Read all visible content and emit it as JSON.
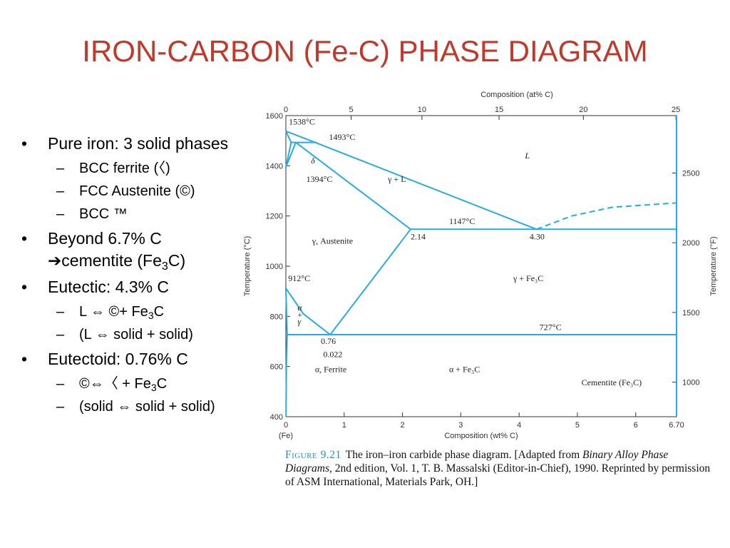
{
  "slide": {
    "title": "IRON-CARBON (Fe-C) PHASE DIAGRAM"
  },
  "bullets": [
    {
      "text": "Pure iron: 3 solid phases",
      "sub": [
        "BCC ferrite (〈)",
        "FCC Austenite (©)",
        "BCC ™"
      ]
    },
    {
      "text_parts": [
        "Beyond 6.7% C ",
        "➔",
        "cementite (Fe",
        "3",
        "C)"
      ],
      "sub": []
    },
    {
      "text": "Eutectic: 4.3% C",
      "sub_parts": [
        [
          "L ",
          "⇔",
          " ©+ Fe",
          "3",
          "C"
        ],
        [
          "(L ",
          "⇔",
          " solid + solid)"
        ]
      ]
    },
    {
      "text": "Eutectoid: 0.76% C",
      "sub_parts": [
        [
          " ©",
          "⇔",
          "〈 + Fe",
          "3",
          "C"
        ],
        [
          "(solid ",
          "⇔",
          " solid + solid)"
        ]
      ]
    }
  ],
  "caption": {
    "label": "Figure 9.21",
    "text_1": "The iron–iron carbide phase diagram. [Adapted from ",
    "italic_1": "Binary Alloy Phase Diagrams,",
    "text_2": " 2nd edition, Vol. 1, T. B. Massalski (Editor-in-Chief), 1990. Reprinted by permission of ASM International, Materials Park, OH.]"
  },
  "colors": {
    "title": "#c0392b",
    "diagram_line": "#29abe2",
    "axis": "#333333"
  },
  "chart_data": {
    "type": "phase-diagram",
    "xlabel": "Composition (wt% C)",
    "ylabel": "Temperature (°C)",
    "x2label": "Composition (at% C)",
    "y2label": "Temperature (°F)",
    "xlim": [
      0,
      6.7
    ],
    "ylim": [
      400,
      1600
    ],
    "x_ticks": [
      0,
      1,
      2,
      3,
      4,
      5,
      6,
      6.7
    ],
    "x_tick_labels": [
      "0",
      "1",
      "2",
      "3",
      "4",
      "5",
      "6",
      "6.70"
    ],
    "x_origin_label": "(Fe)",
    "y_ticks": [
      400,
      600,
      800,
      1000,
      1200,
      1400,
      1600
    ],
    "top_ticks_at_pct": [
      0,
      5,
      10,
      15,
      20,
      25
    ],
    "right_ticks_F": [
      1000,
      1500,
      2000,
      2500
    ],
    "lines": [
      {
        "name": "liquidus-delta",
        "points": [
          [
            0,
            1538
          ],
          [
            0.5,
            1493
          ]
        ]
      },
      {
        "name": "liquidus-gamma",
        "points": [
          [
            0.5,
            1493
          ],
          [
            4.3,
            1147
          ]
        ]
      },
      {
        "name": "liquidus-fe3c",
        "dashed": true,
        "points": [
          [
            4.3,
            1147
          ],
          [
            4.9,
            1200
          ],
          [
            5.6,
            1235
          ],
          [
            6.7,
            1252
          ]
        ]
      },
      {
        "name": "delta-solidus",
        "points": [
          [
            0,
            1538
          ],
          [
            0.09,
            1493
          ]
        ]
      },
      {
        "name": "delta-gamma-left",
        "points": [
          [
            0,
            1394
          ],
          [
            0.09,
            1493
          ]
        ]
      },
      {
        "name": "delta-gamma-right",
        "points": [
          [
            0,
            1394
          ],
          [
            0.17,
            1493
          ]
        ]
      },
      {
        "name": "peritectic",
        "points": [
          [
            0.09,
            1493
          ],
          [
            0.53,
            1493
          ]
        ]
      },
      {
        "name": "gamma-solidus",
        "points": [
          [
            0.17,
            1493
          ],
          [
            2.14,
            1147
          ]
        ]
      },
      {
        "name": "eutectic",
        "points": [
          [
            2.14,
            1147
          ],
          [
            6.7,
            1147
          ]
        ]
      },
      {
        "name": "acm",
        "points": [
          [
            0.76,
            727
          ],
          [
            2.14,
            1147
          ]
        ]
      },
      {
        "name": "a3",
        "points": [
          [
            0,
            912
          ],
          [
            0.3,
            810
          ],
          [
            0.76,
            727
          ]
        ]
      },
      {
        "name": "alpha-gamma-boundary",
        "points": [
          [
            0,
            912
          ],
          [
            0.022,
            727
          ]
        ]
      },
      {
        "name": "eutectoid",
        "points": [
          [
            0.022,
            727
          ],
          [
            6.7,
            727
          ]
        ]
      },
      {
        "name": "alpha-solvus",
        "points": [
          [
            0.022,
            727
          ],
          [
            0.008,
            600
          ],
          [
            0.002,
            400
          ]
        ]
      },
      {
        "name": "cementite",
        "points": [
          [
            6.7,
            400
          ],
          [
            6.7,
            1600
          ]
        ]
      }
    ],
    "labels": [
      {
        "text": "1538°C",
        "x": 0.05,
        "y": 1565
      },
      {
        "text": "1493°C",
        "x": 0.74,
        "y": 1503
      },
      {
        "text": "δ",
        "x": 0.43,
        "y": 1410,
        "italic": true
      },
      {
        "text": "1394°C",
        "x": 0.35,
        "y": 1336
      },
      {
        "text": "L",
        "x": 4.1,
        "y": 1430,
        "italic": true
      },
      {
        "text": "γ + L",
        "x": 1.75,
        "y": 1335
      },
      {
        "text": "1147°C",
        "x": 2.8,
        "y": 1168
      },
      {
        "text": "2.14",
        "x": 2.14,
        "y": 1107
      },
      {
        "text": "4.30",
        "x": 4.18,
        "y": 1107
      },
      {
        "text": "γ, Austenite",
        "x": 0.45,
        "y": 1089
      },
      {
        "text": "912°C",
        "x": 0.04,
        "y": 940
      },
      {
        "text": "γ + Fe₃C",
        "x": 3.9,
        "y": 940
      },
      {
        "text": "α",
        "x": 0.2,
        "y": 823,
        "italic": true
      },
      {
        "text": "+",
        "x": 0.2,
        "y": 795
      },
      {
        "text": "γ",
        "x": 0.2,
        "y": 768,
        "italic": true
      },
      {
        "text": "727°C",
        "x": 4.35,
        "y": 745
      },
      {
        "text": "0.76",
        "x": 0.6,
        "y": 690
      },
      {
        "text": "0.022",
        "x": 0.64,
        "y": 638
      },
      {
        "text": "α, Ferrite",
        "x": 0.5,
        "y": 578
      },
      {
        "text": "α + Fe₃C",
        "x": 2.8,
        "y": 578
      },
      {
        "text": "Cementite (Fe₃C)",
        "x": 5.07,
        "y": 525
      }
    ]
  }
}
